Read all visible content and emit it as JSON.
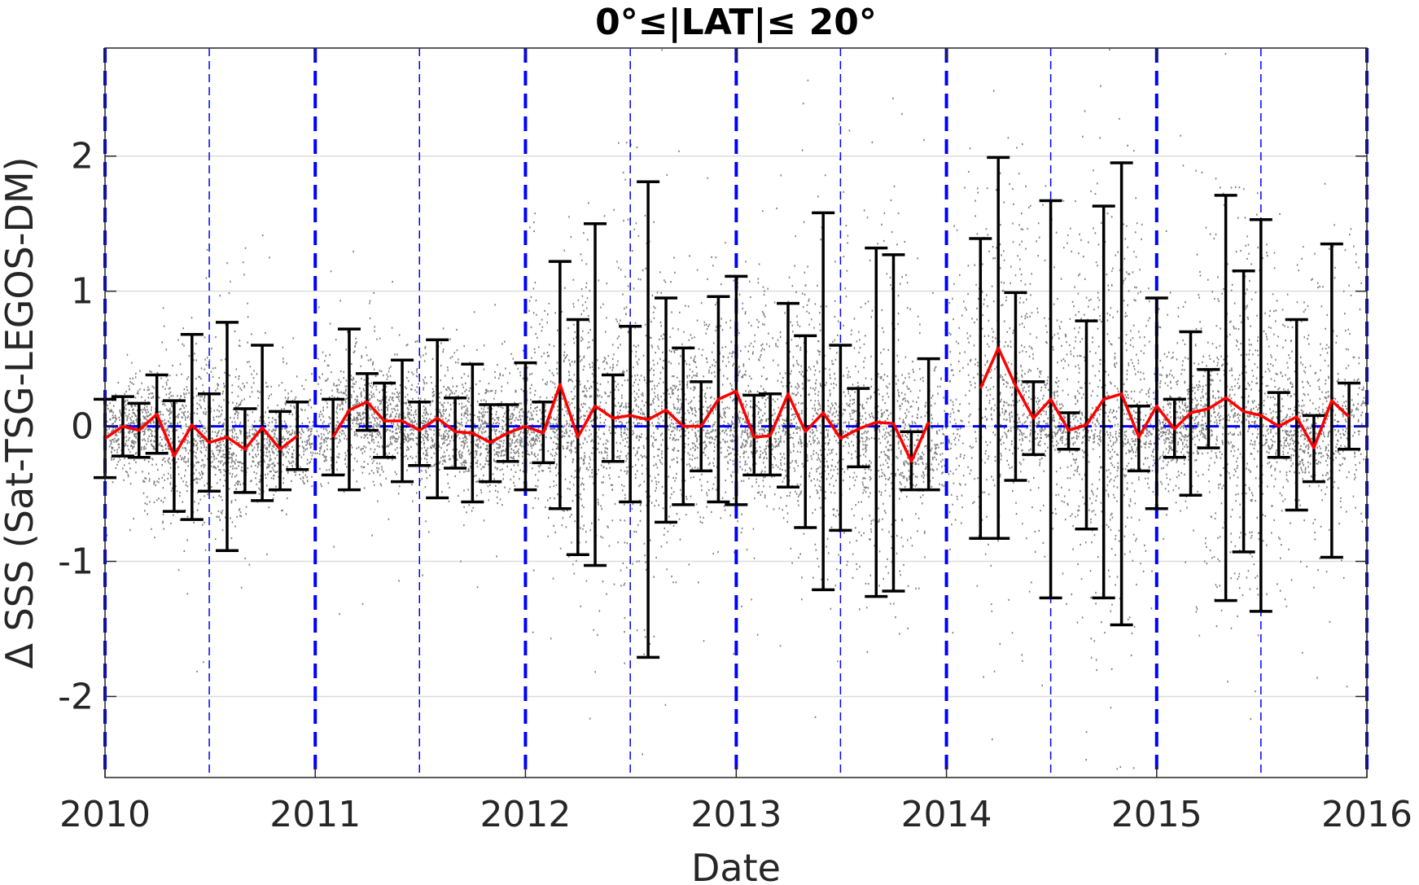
{
  "chart_data": {
    "type": "scatter",
    "title": "0°≤|LAT|≤ 20°",
    "xlabel": "Date",
    "ylabel": "Δ SSS (Sat-TSG-LEGOS-DM)",
    "xlim": [
      "2010-01-01",
      "2016-01-01"
    ],
    "ylim": [
      -2.6,
      2.8
    ],
    "xticks": [
      "2010",
      "2011",
      "2012",
      "2013",
      "2014",
      "2015",
      "2016"
    ],
    "yticks": [
      -2,
      -1,
      0,
      1,
      2
    ],
    "grid": true,
    "reference_line": {
      "y": 0,
      "style": "dashed",
      "color": "#0000ff"
    },
    "year_lines": {
      "dates": [
        "2010-01-01",
        "2011-01-01",
        "2012-01-01",
        "2013-01-01",
        "2014-01-01",
        "2015-01-01",
        "2016-01-01"
      ],
      "style": "thick dashed",
      "color": "#0000ff"
    },
    "half_year_lines": {
      "dates": [
        "2010-07-01",
        "2011-07-01",
        "2012-07-01",
        "2013-07-01",
        "2014-07-01",
        "2015-07-01"
      ],
      "style": "thin dashed",
      "color": "#0000ff"
    },
    "series": [
      {
        "type": "line",
        "color": "#ff0000",
        "segments": [
          {
            "x": [
              "2010-01-01",
              "2010-02-01",
              "2010-03-01",
              "2010-04-01",
              "2010-05-01",
              "2010-06-01",
              "2010-07-01",
              "2010-08-01",
              "2010-09-01",
              "2010-10-01",
              "2010-11-01",
              "2010-12-01"
            ],
            "mean": [
              -0.09,
              0.0,
              -0.03,
              0.09,
              -0.22,
              0.01,
              -0.12,
              -0.08,
              -0.17,
              -0.01,
              -0.17,
              -0.07
            ],
            "lower": [
              -0.38,
              -0.22,
              -0.23,
              -0.2,
              -0.63,
              -0.69,
              -0.48,
              -0.92,
              -0.49,
              -0.55,
              -0.47,
              -0.32
            ],
            "upper": [
              0.2,
              0.22,
              0.17,
              0.38,
              0.19,
              0.68,
              0.24,
              0.77,
              0.13,
              0.6,
              0.11,
              0.18
            ]
          },
          {
            "x": [
              "2011-02-01",
              "2011-03-01",
              "2011-04-01",
              "2011-05-01",
              "2011-06-01",
              "2011-07-01",
              "2011-08-01",
              "2011-09-01",
              "2011-10-01",
              "2011-11-01",
              "2011-12-01",
              "2012-01-01",
              "2012-02-01",
              "2012-03-01",
              "2012-04-01",
              "2012-05-01",
              "2012-06-01",
              "2012-07-01",
              "2012-08-01",
              "2012-09-01",
              "2012-10-01",
              "2012-11-01",
              "2012-12-01",
              "2013-01-01",
              "2013-02-01",
              "2013-03-01",
              "2013-04-01",
              "2013-05-01",
              "2013-06-01",
              "2013-07-01",
              "2013-08-01",
              "2013-09-01",
              "2013-10-01",
              "2013-11-01",
              "2013-12-01"
            ],
            "mean": [
              -0.08,
              0.12,
              0.18,
              0.04,
              0.04,
              -0.03,
              0.06,
              -0.04,
              -0.05,
              -0.12,
              -0.05,
              0.0,
              -0.05,
              0.31,
              -0.08,
              0.15,
              0.06,
              0.08,
              0.05,
              0.12,
              0.0,
              0.0,
              0.2,
              0.26,
              -0.08,
              -0.07,
              0.24,
              -0.04,
              0.1,
              -0.09,
              -0.02,
              0.03,
              0.02,
              -0.26,
              0.03
            ],
            "lower": [
              -0.36,
              -0.47,
              -0.03,
              -0.23,
              -0.41,
              -0.29,
              -0.53,
              -0.31,
              -0.56,
              -0.41,
              -0.26,
              -0.47,
              -0.27,
              -0.61,
              -0.95,
              -1.03,
              -0.26,
              -0.56,
              -1.71,
              -0.71,
              -0.58,
              -0.33,
              -0.56,
              -0.58,
              -0.36,
              -0.36,
              -0.45,
              -0.75,
              -1.21,
              -0.77,
              -0.3,
              -1.26,
              -1.22,
              -0.47,
              -0.47
            ],
            "upper": [
              0.2,
              0.72,
              0.39,
              0.32,
              0.49,
              0.18,
              0.64,
              0.21,
              0.46,
              0.16,
              0.16,
              0.47,
              0.18,
              1.22,
              0.79,
              1.5,
              0.38,
              0.74,
              1.81,
              0.95,
              0.58,
              0.33,
              0.96,
              1.11,
              0.23,
              0.24,
              0.91,
              0.67,
              1.58,
              0.6,
              0.28,
              1.32,
              1.27,
              -0.04,
              0.5
            ]
          },
          {
            "x": [
              "2014-03-01",
              "2014-04-01",
              "2014-05-01",
              "2014-06-01",
              "2014-07-01",
              "2014-08-01",
              "2014-09-01",
              "2014-10-01",
              "2014-11-01",
              "2014-12-01",
              "2015-01-01",
              "2015-02-01",
              "2015-03-01",
              "2015-04-01",
              "2015-05-01",
              "2015-06-01",
              "2015-07-01",
              "2015-08-01",
              "2015-09-01",
              "2015-10-01",
              "2015-11-01",
              "2015-12-01"
            ],
            "mean": [
              0.28,
              0.58,
              0.3,
              0.06,
              0.2,
              -0.03,
              0.01,
              0.2,
              0.24,
              -0.08,
              0.15,
              -0.02,
              0.1,
              0.13,
              0.21,
              0.11,
              0.08,
              0.0,
              0.07,
              -0.16,
              0.19,
              0.07
            ],
            "lower": [
              -0.83,
              -0.83,
              -0.4,
              -0.21,
              -1.27,
              -0.17,
              -0.76,
              -1.27,
              -1.47,
              -0.33,
              -0.61,
              -0.23,
              -0.51,
              -0.16,
              -1.29,
              -0.93,
              -1.37,
              -0.23,
              -0.62,
              -0.41,
              -0.97,
              -0.17
            ],
            "upper": [
              1.39,
              1.99,
              0.99,
              0.33,
              1.67,
              0.1,
              0.78,
              1.63,
              1.95,
              0.15,
              0.95,
              0.2,
              0.7,
              0.42,
              1.71,
              1.15,
              1.53,
              0.25,
              0.79,
              0.08,
              1.35,
              0.32
            ]
          }
        ]
      },
      {
        "type": "scatter",
        "color": "#7f7f7f",
        "note": "dense gray individual matchup points (thousands)"
      }
    ]
  }
}
